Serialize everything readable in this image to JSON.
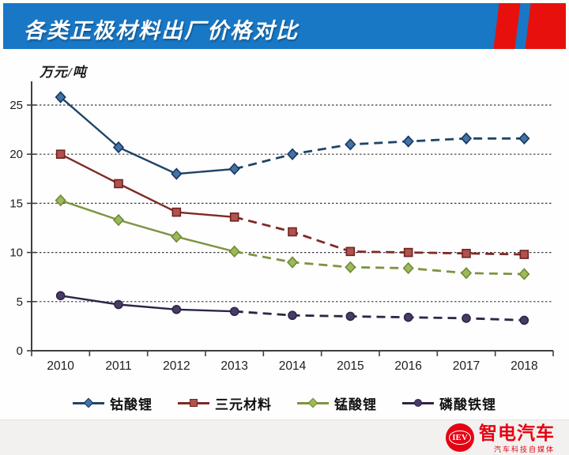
{
  "header": {
    "title": "各类正极材料出厂价格对比",
    "banner_color": "#1878c6",
    "stripe_color": "#e8100c"
  },
  "chart_data": {
    "type": "line",
    "title": "各类正极材料出厂价格对比",
    "unit_label": "万元/吨",
    "categories": [
      "2010",
      "2011",
      "2012",
      "2013",
      "2014",
      "2015",
      "2016",
      "2017",
      "2018"
    ],
    "yticks": [
      0,
      5,
      10,
      15,
      20,
      25
    ],
    "ylim": [
      0,
      25
    ],
    "grid": "horizontal-dotted",
    "legend_position": "bottom",
    "solid_until_index": 3,
    "note": "solid lines 2010-2013 actual, dashed 2013-2018 forecast",
    "series": [
      {
        "name": "钴酸锂",
        "marker": "diamond",
        "line_color": "#1f4467",
        "marker_fill": "#4372a6",
        "marker_stroke": "#17375e",
        "values": [
          25.8,
          20.7,
          18.0,
          18.5,
          20.0,
          21.0,
          21.3,
          21.6,
          21.6
        ]
      },
      {
        "name": "三元材料",
        "marker": "square",
        "line_color": "#7e2a26",
        "marker_fill": "#b1524e",
        "marker_stroke": "#6e2422",
        "values": [
          20.0,
          17.0,
          14.1,
          13.6,
          12.1,
          10.1,
          10.0,
          9.9,
          9.8
        ]
      },
      {
        "name": "锰酸锂",
        "marker": "diamond",
        "line_color": "#7c9440",
        "marker_fill": "#9cba5a",
        "marker_stroke": "#71893a",
        "values": [
          15.3,
          13.3,
          11.6,
          10.1,
          9.0,
          8.5,
          8.4,
          7.9,
          7.8
        ]
      },
      {
        "name": "磷酸铁锂",
        "marker": "circle",
        "line_color": "#2c2547",
        "marker_fill": "#4a3b66",
        "marker_stroke": "#2c2547",
        "values": [
          5.6,
          4.7,
          4.2,
          4.0,
          3.6,
          3.5,
          3.4,
          3.3,
          3.1
        ]
      }
    ]
  },
  "footer": {
    "logo_badge": "IEV",
    "logo_text": "智电汽车",
    "logo_subtext": "汽车科技自媒体"
  }
}
